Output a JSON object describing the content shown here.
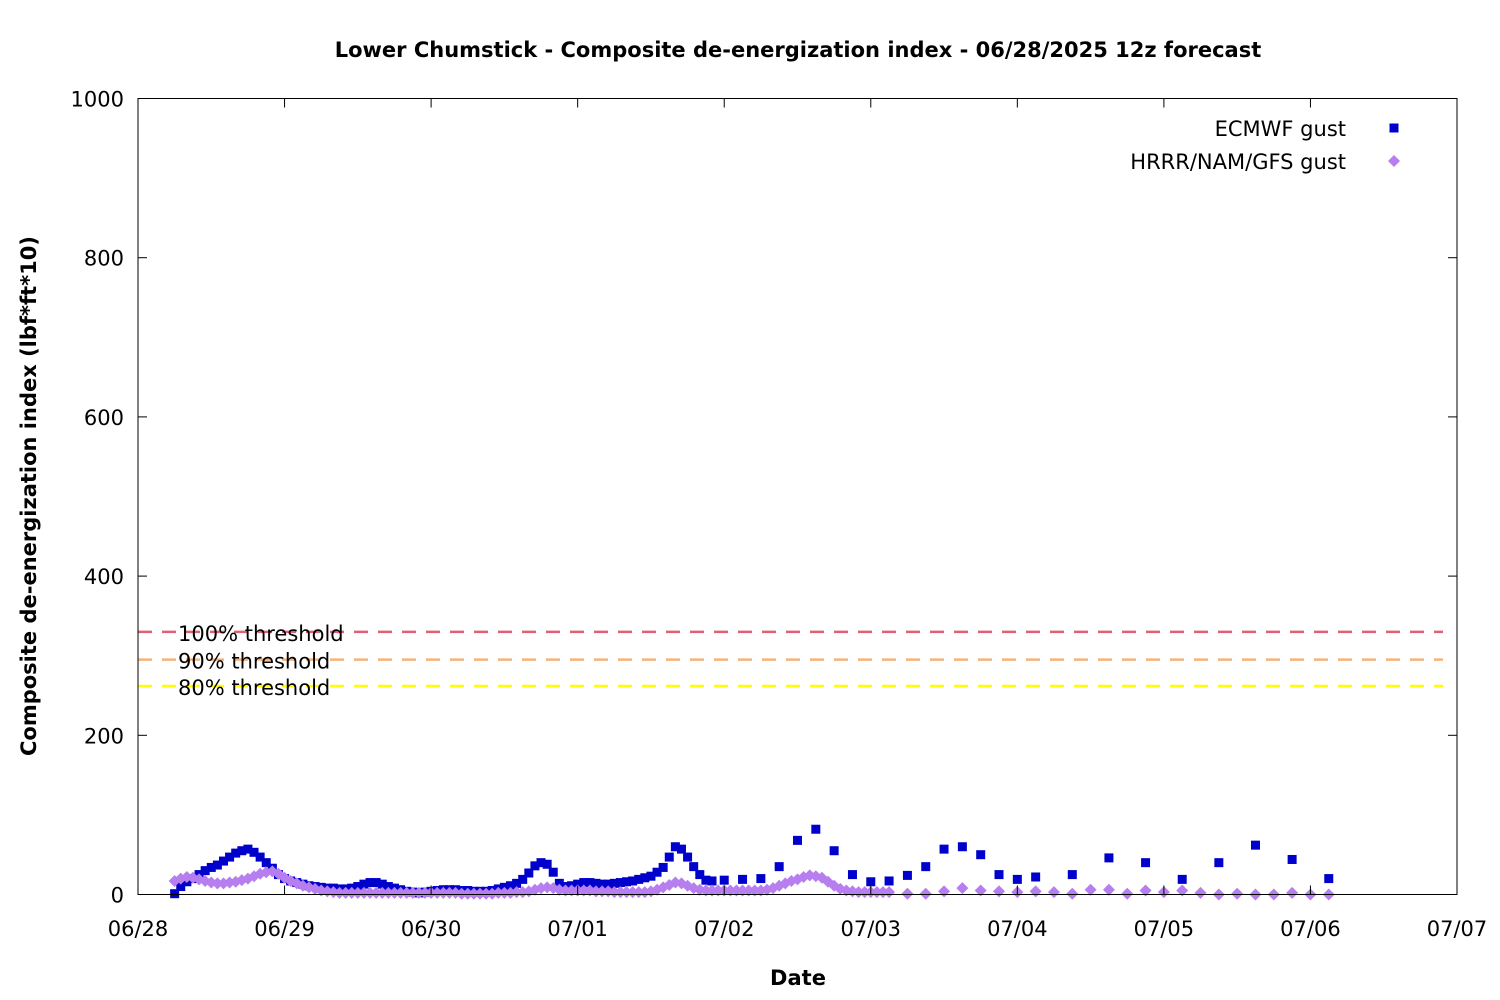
{
  "chart_data": {
    "type": "scatter",
    "title": "Lower Chumstick - Composite de-energization index - 06/28/2025 12z forecast",
    "xlabel": "Date",
    "ylabel": "Composite de-energization index (lbf*ft*10)",
    "xlim": [
      "06/28",
      "07/07"
    ],
    "ylim": [
      0,
      1000
    ],
    "x_ticks": [
      "06/28",
      "06/29",
      "06/30",
      "07/01",
      "07/02",
      "07/03",
      "07/04",
      "07/05",
      "07/06",
      "07/07"
    ],
    "y_ticks": [
      "0",
      "200",
      "400",
      "600",
      "800",
      "1000"
    ],
    "legend_position": "top-right",
    "grid": false,
    "thresholds": [
      {
        "name": "100% threshold",
        "value": 330,
        "color": "#e0607a"
      },
      {
        "name": "90% threshold",
        "value": 295,
        "color": "#f5b27a"
      },
      {
        "name": "80% threshold",
        "value": 262,
        "color": "#ffff00"
      }
    ],
    "series": [
      {
        "name": "ECMWF gust",
        "color": "#0000cc",
        "marker": "square",
        "points": [
          [
            "06/28 06:00",
            1
          ],
          [
            "06/28 07:00",
            10
          ],
          [
            "06/28 08:00",
            16
          ],
          [
            "06/28 09:00",
            20
          ],
          [
            "06/28 10:00",
            25
          ],
          [
            "06/28 11:00",
            30
          ],
          [
            "06/28 12:00",
            34
          ],
          [
            "06/28 13:00",
            37
          ],
          [
            "06/28 14:00",
            42
          ],
          [
            "06/28 15:00",
            47
          ],
          [
            "06/28 16:00",
            52
          ],
          [
            "06/28 17:00",
            55
          ],
          [
            "06/28 18:00",
            57
          ],
          [
            "06/28 19:00",
            53
          ],
          [
            "06/28 20:00",
            47
          ],
          [
            "06/28 21:00",
            40
          ],
          [
            "06/28 22:00",
            33
          ],
          [
            "06/28 23:00",
            25
          ],
          [
            "06/29 00:00",
            20
          ],
          [
            "06/29 01:00",
            17
          ],
          [
            "06/29 02:00",
            15
          ],
          [
            "06/29 03:00",
            13
          ],
          [
            "06/29 04:00",
            11
          ],
          [
            "06/29 05:00",
            10
          ],
          [
            "06/29 06:00",
            9
          ],
          [
            "06/29 07:00",
            8
          ],
          [
            "06/29 08:00",
            8
          ],
          [
            "06/29 09:00",
            7
          ],
          [
            "06/29 10:00",
            7
          ],
          [
            "06/29 11:00",
            8
          ],
          [
            "06/29 12:00",
            10
          ],
          [
            "06/29 13:00",
            13
          ],
          [
            "06/29 14:00",
            15
          ],
          [
            "06/29 15:00",
            15
          ],
          [
            "06/29 16:00",
            13
          ],
          [
            "06/29 17:00",
            10
          ],
          [
            "06/29 18:00",
            8
          ],
          [
            "06/29 19:00",
            6
          ],
          [
            "06/29 20:00",
            4
          ],
          [
            "06/29 21:00",
            3
          ],
          [
            "06/29 22:00",
            2
          ],
          [
            "06/29 23:00",
            3
          ],
          [
            "06/30 00:00",
            4
          ],
          [
            "06/30 01:00",
            5
          ],
          [
            "06/30 02:00",
            6
          ],
          [
            "06/30 03:00",
            6
          ],
          [
            "06/30 04:00",
            6
          ],
          [
            "06/30 05:00",
            5
          ],
          [
            "06/30 06:00",
            5
          ],
          [
            "06/30 07:00",
            4
          ],
          [
            "06/30 08:00",
            4
          ],
          [
            "06/30 09:00",
            4
          ],
          [
            "06/30 10:00",
            5
          ],
          [
            "06/30 11:00",
            7
          ],
          [
            "06/30 12:00",
            9
          ],
          [
            "06/30 13:00",
            11
          ],
          [
            "06/30 14:00",
            14
          ],
          [
            "06/30 15:00",
            19
          ],
          [
            "06/30 16:00",
            27
          ],
          [
            "06/30 17:00",
            36
          ],
          [
            "06/30 18:00",
            40
          ],
          [
            "06/30 19:00",
            38
          ],
          [
            "06/30 20:00",
            28
          ],
          [
            "06/30 21:00",
            14
          ],
          [
            "06/30 22:00",
            10
          ],
          [
            "06/30 23:00",
            11
          ],
          [
            "07/01 00:00",
            13
          ],
          [
            "07/01 01:00",
            15
          ],
          [
            "07/01 02:00",
            15
          ],
          [
            "07/01 03:00",
            14
          ],
          [
            "07/01 04:00",
            13
          ],
          [
            "07/01 05:00",
            13
          ],
          [
            "07/01 06:00",
            14
          ],
          [
            "07/01 07:00",
            15
          ],
          [
            "07/01 08:00",
            16
          ],
          [
            "07/01 09:00",
            17
          ],
          [
            "07/01 10:00",
            19
          ],
          [
            "07/01 11:00",
            21
          ],
          [
            "07/01 12:00",
            23
          ],
          [
            "07/01 13:00",
            28
          ],
          [
            "07/01 14:00",
            34
          ],
          [
            "07/01 15:00",
            47
          ],
          [
            "07/01 16:00",
            60
          ],
          [
            "07/01 17:00",
            57
          ],
          [
            "07/01 18:00",
            47
          ],
          [
            "07/01 19:00",
            35
          ],
          [
            "07/01 20:00",
            25
          ],
          [
            "07/01 21:00",
            18
          ],
          [
            "07/01 22:00",
            17
          ],
          [
            "07/02 00:00",
            18
          ],
          [
            "07/02 03:00",
            19
          ],
          [
            "07/02 06:00",
            20
          ],
          [
            "07/02 09:00",
            35
          ],
          [
            "07/02 12:00",
            68
          ],
          [
            "07/02 15:00",
            82
          ],
          [
            "07/02 18:00",
            55
          ],
          [
            "07/02 21:00",
            25
          ],
          [
            "07/03 00:00",
            16
          ],
          [
            "07/03 03:00",
            17
          ],
          [
            "07/03 06:00",
            24
          ],
          [
            "07/03 09:00",
            35
          ],
          [
            "07/03 12:00",
            57
          ],
          [
            "07/03 15:00",
            60
          ],
          [
            "07/03 18:00",
            50
          ],
          [
            "07/03 21:00",
            25
          ],
          [
            "07/04 00:00",
            19
          ],
          [
            "07/04 03:00",
            22
          ],
          [
            "07/04 09:00",
            25
          ],
          [
            "07/04 15:00",
            46
          ],
          [
            "07/04 21:00",
            40
          ],
          [
            "07/05 03:00",
            19
          ],
          [
            "07/05 09:00",
            40
          ],
          [
            "07/05 15:00",
            62
          ],
          [
            "07/05 21:00",
            44
          ],
          [
            "07/06 03:00",
            20
          ]
        ]
      },
      {
        "name": "HRRR/NAM/GFS gust",
        "color": "#b77ef0",
        "marker": "diamond",
        "points": [
          [
            "06/28 06:00",
            17
          ],
          [
            "06/28 07:00",
            20
          ],
          [
            "06/28 08:00",
            22
          ],
          [
            "06/28 09:00",
            21
          ],
          [
            "06/28 10:00",
            19
          ],
          [
            "06/28 11:00",
            17
          ],
          [
            "06/28 12:00",
            15
          ],
          [
            "06/28 13:00",
            14
          ],
          [
            "06/28 14:00",
            14
          ],
          [
            "06/28 15:00",
            15
          ],
          [
            "06/28 16:00",
            16
          ],
          [
            "06/28 17:00",
            18
          ],
          [
            "06/28 18:00",
            20
          ],
          [
            "06/28 19:00",
            23
          ],
          [
            "06/28 20:00",
            26
          ],
          [
            "06/28 21:00",
            28
          ],
          [
            "06/28 22:00",
            29
          ],
          [
            "06/28 23:00",
            26
          ],
          [
            "06/29 00:00",
            21
          ],
          [
            "06/29 01:00",
            17
          ],
          [
            "06/29 02:00",
            14
          ],
          [
            "06/29 03:00",
            11
          ],
          [
            "06/29 04:00",
            9
          ],
          [
            "06/29 05:00",
            7
          ],
          [
            "06/29 06:00",
            5
          ],
          [
            "06/29 07:00",
            4
          ],
          [
            "06/29 08:00",
            3
          ],
          [
            "06/29 09:00",
            2
          ],
          [
            "06/29 10:00",
            2
          ],
          [
            "06/29 11:00",
            2
          ],
          [
            "06/29 12:00",
            2
          ],
          [
            "06/29 13:00",
            2
          ],
          [
            "06/29 14:00",
            2
          ],
          [
            "06/29 15:00",
            2
          ],
          [
            "06/29 16:00",
            2
          ],
          [
            "06/29 17:00",
            2
          ],
          [
            "06/29 18:00",
            2
          ],
          [
            "06/29 19:00",
            2
          ],
          [
            "06/29 20:00",
            2
          ],
          [
            "06/29 21:00",
            2
          ],
          [
            "06/29 22:00",
            2
          ],
          [
            "06/29 23:00",
            2
          ],
          [
            "06/30 00:00",
            2
          ],
          [
            "06/30 01:00",
            2
          ],
          [
            "06/30 02:00",
            2
          ],
          [
            "06/30 03:00",
            2
          ],
          [
            "06/30 04:00",
            2
          ],
          [
            "06/30 05:00",
            1
          ],
          [
            "06/30 06:00",
            1
          ],
          [
            "06/30 07:00",
            1
          ],
          [
            "06/30 08:00",
            1
          ],
          [
            "06/30 09:00",
            1
          ],
          [
            "06/30 10:00",
            1
          ],
          [
            "06/30 11:00",
            2
          ],
          [
            "06/30 12:00",
            2
          ],
          [
            "06/30 13:00",
            2
          ],
          [
            "06/30 14:00",
            3
          ],
          [
            "06/30 15:00",
            3
          ],
          [
            "06/30 16:00",
            4
          ],
          [
            "06/30 17:00",
            6
          ],
          [
            "06/30 18:00",
            8
          ],
          [
            "06/30 19:00",
            9
          ],
          [
            "06/30 20:00",
            8
          ],
          [
            "06/30 21:00",
            6
          ],
          [
            "06/30 22:00",
            5
          ],
          [
            "06/30 23:00",
            5
          ],
          [
            "07/01 00:00",
            5
          ],
          [
            "07/01 01:00",
            5
          ],
          [
            "07/01 02:00",
            5
          ],
          [
            "07/01 03:00",
            4
          ],
          [
            "07/01 04:00",
            4
          ],
          [
            "07/01 05:00",
            4
          ],
          [
            "07/01 06:00",
            3
          ],
          [
            "07/01 07:00",
            3
          ],
          [
            "07/01 08:00",
            3
          ],
          [
            "07/01 09:00",
            3
          ],
          [
            "07/01 10:00",
            3
          ],
          [
            "07/01 11:00",
            3
          ],
          [
            "07/01 12:00",
            4
          ],
          [
            "07/01 13:00",
            6
          ],
          [
            "07/01 14:00",
            9
          ],
          [
            "07/01 15:00",
            12
          ],
          [
            "07/01 16:00",
            15
          ],
          [
            "07/01 17:00",
            14
          ],
          [
            "07/01 18:00",
            11
          ],
          [
            "07/01 19:00",
            8
          ],
          [
            "07/01 20:00",
            6
          ],
          [
            "07/01 21:00",
            5
          ],
          [
            "07/01 22:00",
            5
          ],
          [
            "07/01 23:00",
            5
          ],
          [
            "07/02 00:00",
            5
          ],
          [
            "07/02 01:00",
            5
          ],
          [
            "07/02 02:00",
            5
          ],
          [
            "07/02 03:00",
            5
          ],
          [
            "07/02 04:00",
            5
          ],
          [
            "07/02 05:00",
            5
          ],
          [
            "07/02 06:00",
            5
          ],
          [
            "07/02 07:00",
            6
          ],
          [
            "07/02 08:00",
            8
          ],
          [
            "07/02 09:00",
            11
          ],
          [
            "07/02 10:00",
            14
          ],
          [
            "07/02 11:00",
            17
          ],
          [
            "07/02 12:00",
            19
          ],
          [
            "07/02 13:00",
            22
          ],
          [
            "07/02 14:00",
            24
          ],
          [
            "07/02 15:00",
            23
          ],
          [
            "07/02 16:00",
            21
          ],
          [
            "07/02 17:00",
            16
          ],
          [
            "07/02 18:00",
            11
          ],
          [
            "07/02 19:00",
            7
          ],
          [
            "07/02 20:00",
            5
          ],
          [
            "07/02 21:00",
            4
          ],
          [
            "07/02 22:00",
            3
          ],
          [
            "07/02 23:00",
            3
          ],
          [
            "07/03 00:00",
            3
          ],
          [
            "07/03 01:00",
            3
          ],
          [
            "07/03 02:00",
            3
          ],
          [
            "07/03 03:00",
            3
          ],
          [
            "07/03 06:00",
            1
          ],
          [
            "07/03 09:00",
            1
          ],
          [
            "07/03 12:00",
            4
          ],
          [
            "07/03 15:00",
            8
          ],
          [
            "07/03 18:00",
            5
          ],
          [
            "07/03 21:00",
            4
          ],
          [
            "07/04 00:00",
            3
          ],
          [
            "07/04 03:00",
            4
          ],
          [
            "07/04 06:00",
            3
          ],
          [
            "07/04 09:00",
            1
          ],
          [
            "07/04 12:00",
            6
          ],
          [
            "07/04 15:00",
            6
          ],
          [
            "07/04 18:00",
            1
          ],
          [
            "07/04 21:00",
            5
          ],
          [
            "07/05 00:00",
            3
          ],
          [
            "07/05 03:00",
            5
          ],
          [
            "07/05 06:00",
            2
          ],
          [
            "07/05 09:00",
            0
          ],
          [
            "07/05 12:00",
            1
          ],
          [
            "07/05 15:00",
            0
          ],
          [
            "07/05 18:00",
            0
          ],
          [
            "07/05 21:00",
            2
          ],
          [
            "07/06 00:00",
            0
          ],
          [
            "07/06 03:00",
            0
          ]
        ]
      }
    ]
  }
}
